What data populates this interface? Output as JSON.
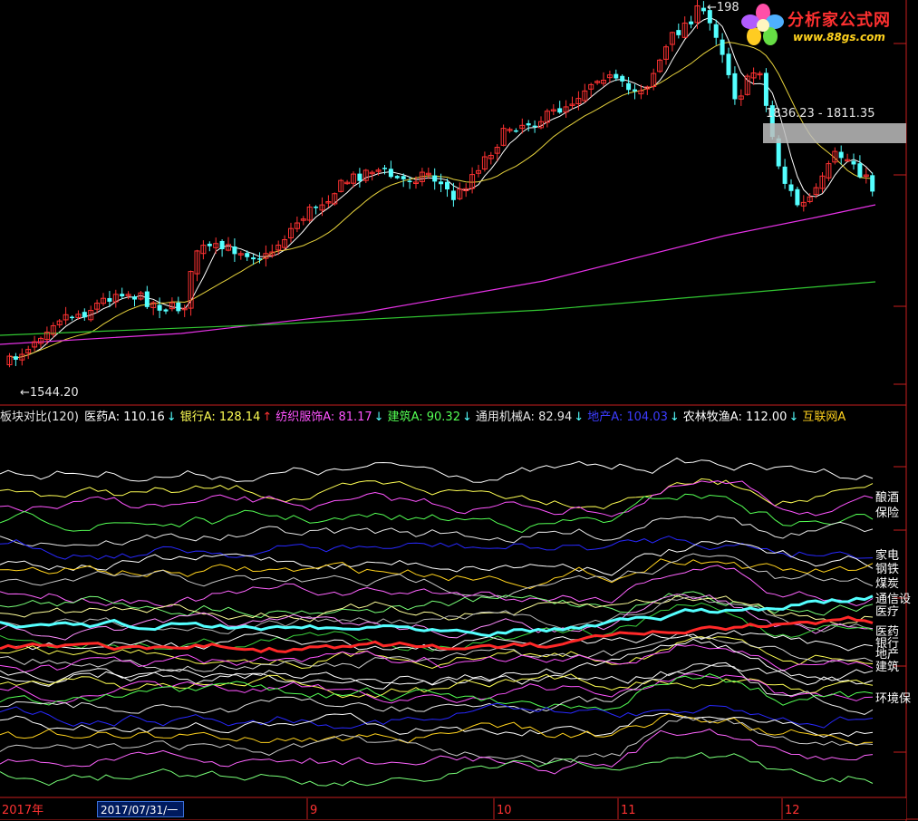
{
  "app": {
    "logo_title": "分析家公式网",
    "logo_url": "www.88gs.com"
  },
  "main_chart": {
    "peak_label": "←198",
    "low_label": "←1544.20",
    "range_label": "1836.23 - 1811.35",
    "colors": {
      "up": "#ff3232",
      "down": "#54ffff",
      "ma_short": "#ffffff",
      "ma_mid": "#e6d23c",
      "ma_long": "#e632e6",
      "ma_longer": "#32c832"
    }
  },
  "legend": {
    "title": "板块对比(120)",
    "items": [
      {
        "label": "医药A: 110.16",
        "arrow": "↓",
        "color": "#ffffff",
        "arrow_color": "#54ffff"
      },
      {
        "label": "银行A: 128.14",
        "arrow": "↑",
        "color": "#ffff54",
        "arrow_color": "#ff3232"
      },
      {
        "label": "纺织服饰A: 81.17",
        "arrow": "↓",
        "color": "#ff54ff",
        "arrow_color": "#54ffff"
      },
      {
        "label": "建筑A: 90.32",
        "arrow": "↓",
        "color": "#54ff54",
        "arrow_color": "#54ffff"
      },
      {
        "label": "通用机械A: 82.94",
        "arrow": "↓",
        "color": "#e6e6e6",
        "arrow_color": "#54ffff"
      },
      {
        "label": "地产A: 104.03",
        "arrow": "↓",
        "color": "#3c3cff",
        "arrow_color": "#54ffff"
      },
      {
        "label": "农林牧渔A: 112.00",
        "arrow": "↓",
        "color": "#ffffff",
        "arrow_color": "#54ffff"
      },
      {
        "label": "互联网A",
        "arrow": "",
        "color": "#ffd21e",
        "arrow_color": "#54ffff"
      }
    ]
  },
  "right_labels": [
    "酿酒",
    "保险",
    "家电",
    "钢铁",
    "煤炭",
    "通信设",
    "医疗",
    "医药",
    "银行",
    "地产",
    "建筑",
    "环境保"
  ],
  "bottom_axis": {
    "year_label": "2017年",
    "current_date": "2017/07/31/一",
    "months": [
      "9",
      "10",
      "11",
      "12"
    ]
  },
  "chart_data": [
    {
      "type": "candlestick",
      "title": "",
      "annotations": [
        "←198",
        "←1544.20",
        "1836.23 - 1811.35"
      ],
      "low": 1544.2,
      "range_box": [
        1811.35,
        1836.23
      ],
      "series": [
        {
          "name": "MA short",
          "color": "#ffffff"
        },
        {
          "name": "MA mid",
          "color": "#e6d23c"
        },
        {
          "name": "MA long",
          "color": "#e632e6"
        },
        {
          "name": "MA longer",
          "color": "#32c832"
        }
      ]
    },
    {
      "type": "line",
      "title": "板块对比(120)",
      "x": [
        "2017年",
        "9",
        "10",
        "11",
        "12"
      ],
      "series": [
        {
          "name": "医药A",
          "last": 110.16,
          "color": "#ffffff"
        },
        {
          "name": "银行A",
          "last": 128.14,
          "color": "#ffff54"
        },
        {
          "name": "纺织服饰A",
          "last": 81.17,
          "color": "#ff54ff"
        },
        {
          "name": "建筑A",
          "last": 90.32,
          "color": "#54ff54"
        },
        {
          "name": "通用机械A",
          "last": 82.94,
          "color": "#e6e6e6"
        },
        {
          "name": "地产A",
          "last": 104.03,
          "color": "#3c3cff"
        },
        {
          "name": "农林牧渔A",
          "last": 112.0,
          "color": "#ffffff"
        },
        {
          "name": "互联网A",
          "color": "#ffd21e"
        }
      ]
    }
  ]
}
